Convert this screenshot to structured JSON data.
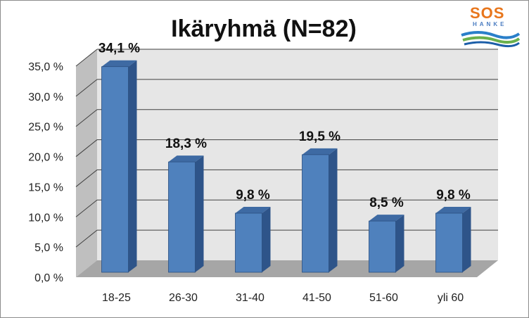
{
  "chart_data": {
    "type": "bar",
    "title": "Ikäryhmä (N=82)",
    "categories": [
      "18-25",
      "26-30",
      "31-40",
      "41-50",
      "51-60",
      "yli 60"
    ],
    "values": [
      34.1,
      18.3,
      9.8,
      19.5,
      8.5,
      9.8
    ],
    "data_labels": [
      "34,1 %",
      "18,3 %",
      "9,8 %",
      "19,5 %",
      "8,5 %",
      "9,8 %"
    ],
    "y_ticks": [
      0,
      5,
      10,
      15,
      20,
      25,
      30,
      35
    ],
    "y_tick_labels": [
      "0,0 %",
      "5,0 %",
      "10,0 %",
      "15,0 %",
      "20,0 %",
      "25,0 %",
      "30,0 %",
      "35,0 %"
    ],
    "ylim": [
      0,
      35
    ],
    "xlabel": "",
    "ylabel": "",
    "grid": true,
    "colors": {
      "bar_front": "#4f81bd",
      "bar_side": "#2e5489",
      "bar_top": "#3e6aa3",
      "wall": "#e6e6e6",
      "floor": "#a6a6a6"
    }
  },
  "logo": {
    "text": "SOS",
    "subtext": "HANKE"
  }
}
